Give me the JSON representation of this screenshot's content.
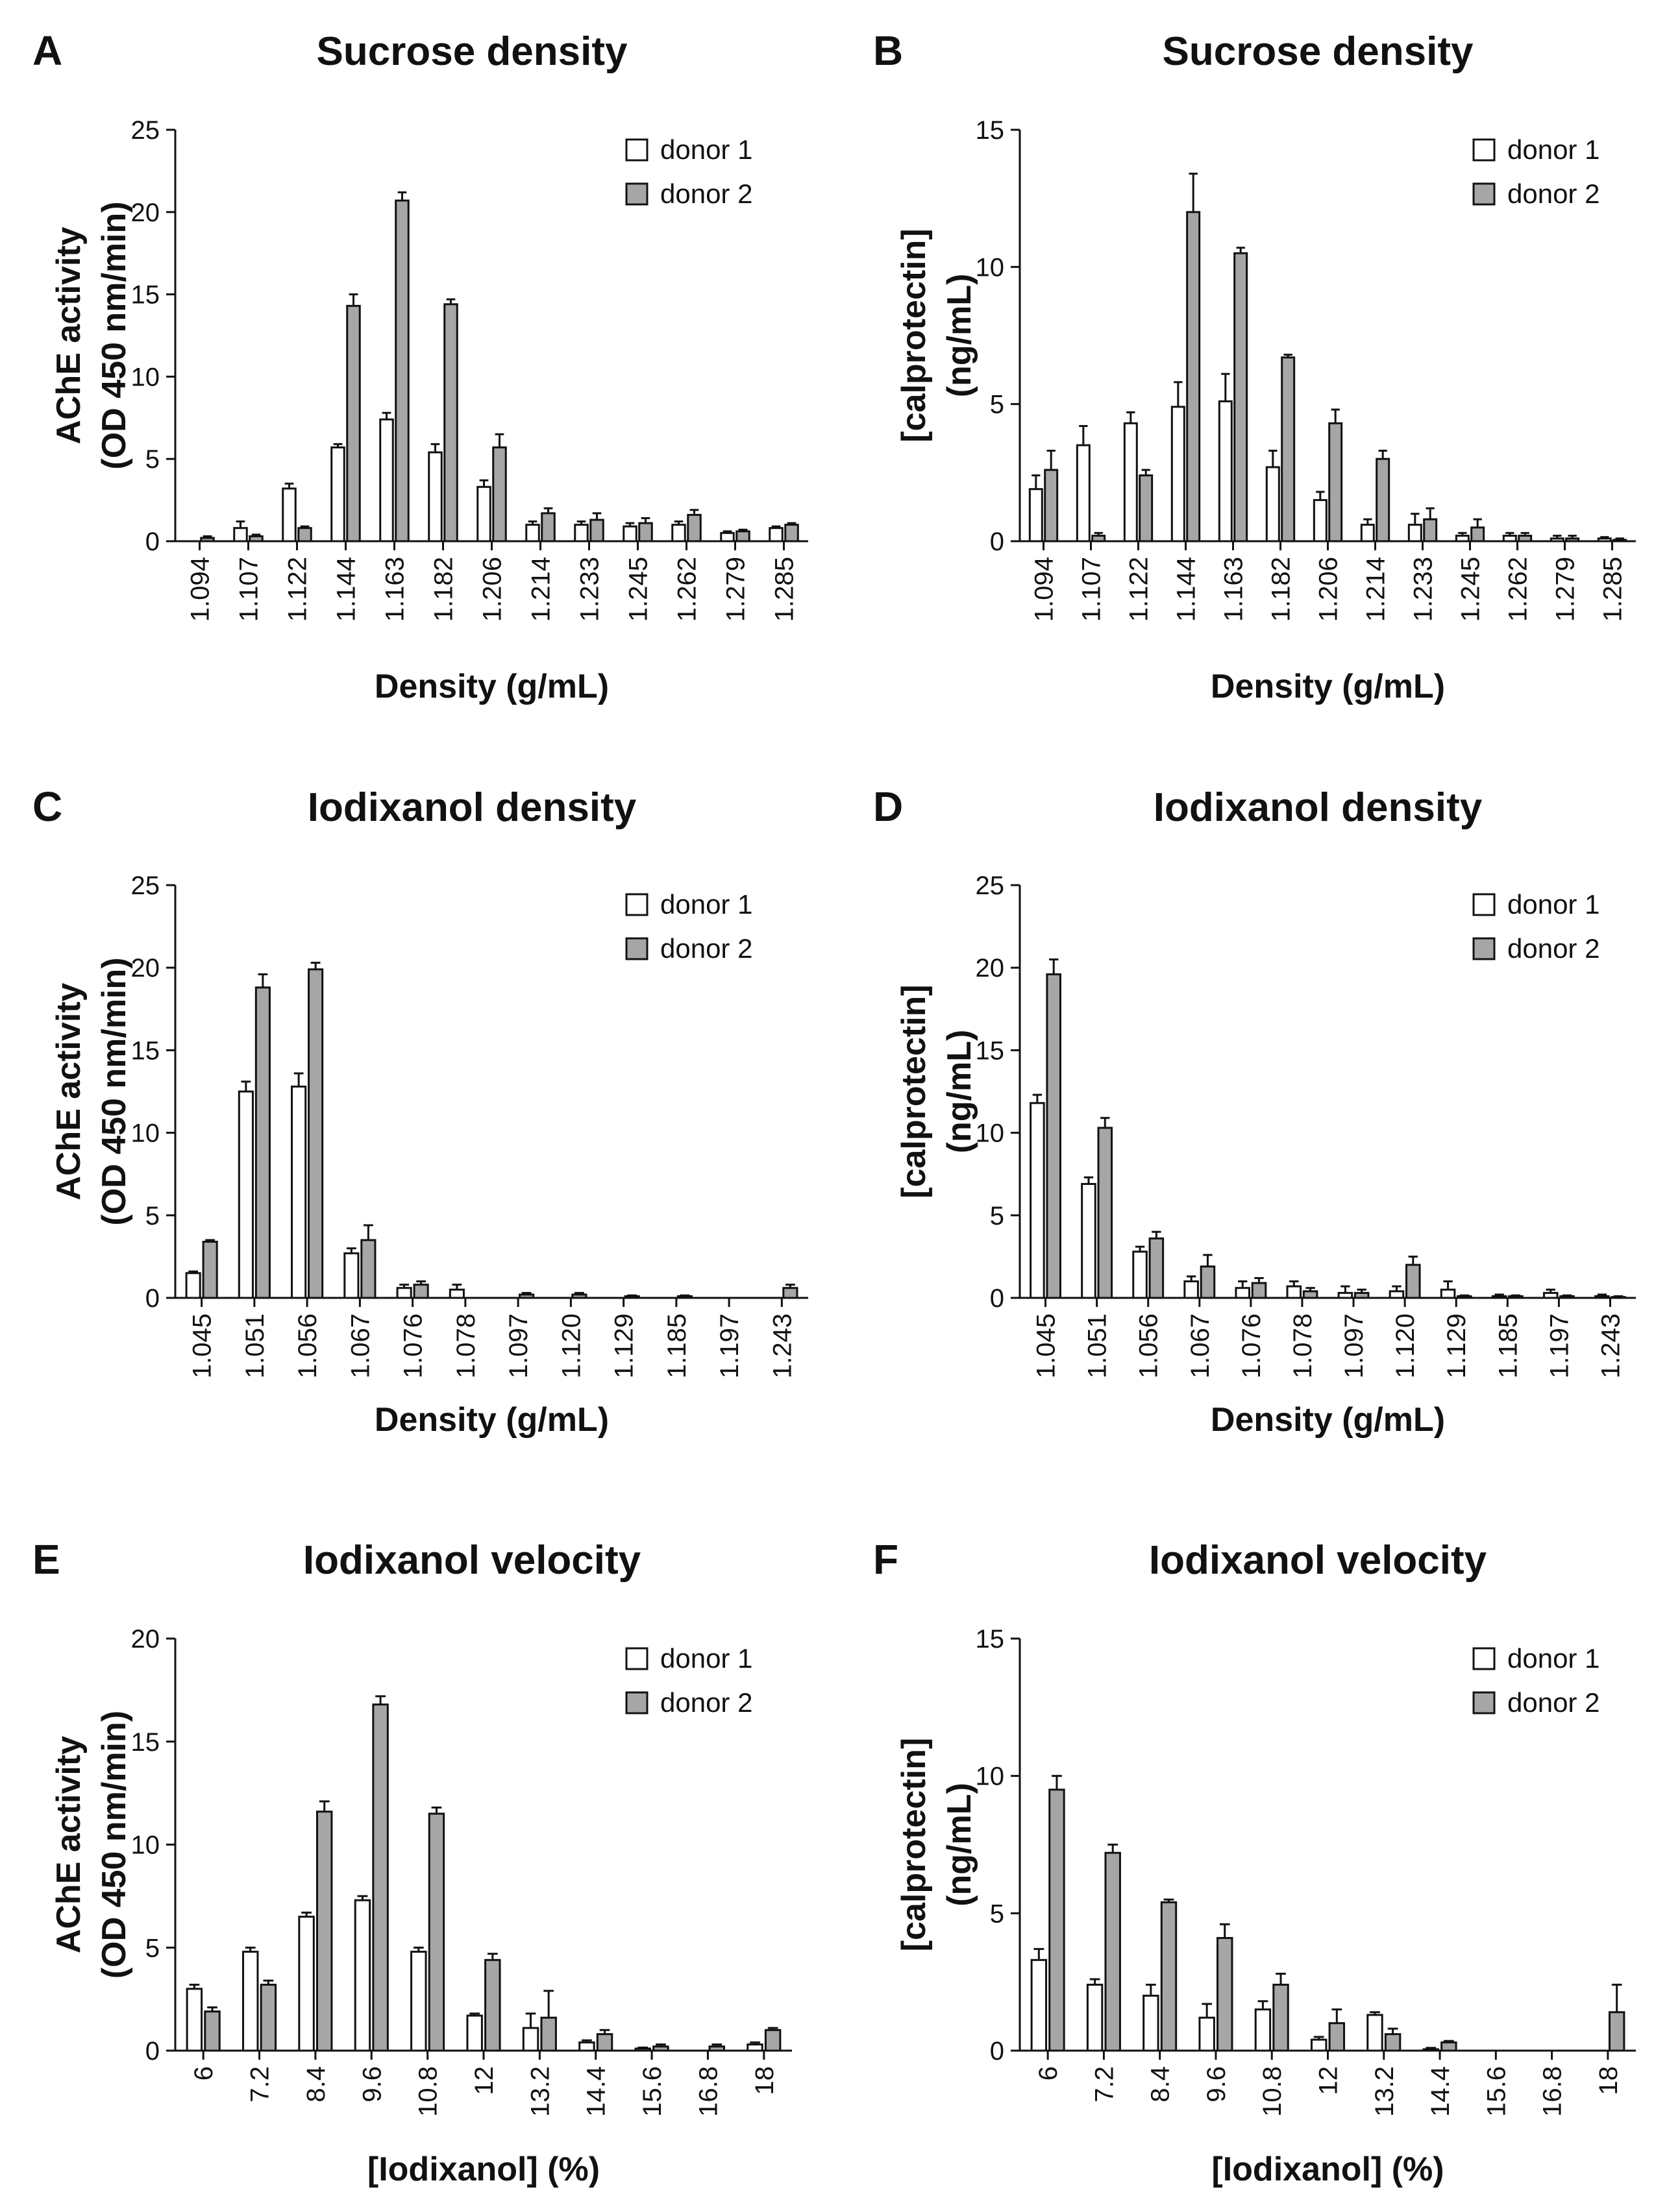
{
  "colors": {
    "donor1_fill": "#ffffff",
    "donor2_fill": "#a6a6a6",
    "stroke": "#111111"
  },
  "legend": {
    "series1": "donor 1",
    "series2": "donor 2"
  },
  "chart_data": [
    {
      "id": "A",
      "panel": "A",
      "type": "bar",
      "title": "Sucrose density",
      "ylabel_line1": "AChE activity",
      "ylabel_line2": "(OD 450 nm/min)",
      "xlabel": "Density (g/mL)",
      "ylim": [
        0,
        25
      ],
      "yticks": [
        0,
        5,
        10,
        15,
        20,
        25
      ],
      "categories": [
        "1.094",
        "1.107",
        "1.122",
        "1.144",
        "1.163",
        "1.182",
        "1.206",
        "1.214",
        "1.233",
        "1.245",
        "1.262",
        "1.279",
        "1.285"
      ],
      "series": [
        {
          "name": "donor 1",
          "values": [
            0,
            0.8,
            3.2,
            5.7,
            7.4,
            5.4,
            3.3,
            1.0,
            1.0,
            0.9,
            1.0,
            0.5,
            0.8
          ],
          "errors": [
            0,
            0.4,
            0.3,
            0.2,
            0.4,
            0.5,
            0.4,
            0.2,
            0.2,
            0.2,
            0.2,
            0.1,
            0.1
          ]
        },
        {
          "name": "donor 2",
          "values": [
            0.2,
            0.3,
            0.8,
            14.3,
            20.7,
            14.4,
            5.7,
            1.7,
            1.3,
            1.1,
            1.6,
            0.6,
            1.0
          ],
          "errors": [
            0.1,
            0.1,
            0.1,
            0.7,
            0.5,
            0.3,
            0.8,
            0.3,
            0.4,
            0.3,
            0.3,
            0.1,
            0.1
          ]
        }
      ]
    },
    {
      "id": "B",
      "panel": "B",
      "type": "bar",
      "title": "Sucrose density",
      "ylabel_line1": "[calprotectin]",
      "ylabel_line2": "(ng/mL)",
      "xlabel": "Density (g/mL)",
      "ylim": [
        0,
        15
      ],
      "yticks": [
        0,
        5,
        10,
        15
      ],
      "categories": [
        "1.094",
        "1.107",
        "1.122",
        "1.144",
        "1.163",
        "1.182",
        "1.206",
        "1.214",
        "1.233",
        "1.245",
        "1.262",
        "1.279",
        "1.285"
      ],
      "series": [
        {
          "name": "donor 1",
          "values": [
            1.9,
            3.5,
            4.3,
            4.9,
            5.1,
            2.7,
            1.5,
            0.6,
            0.6,
            0.2,
            0.2,
            0.1,
            0.1
          ],
          "errors": [
            0.5,
            0.7,
            0.4,
            0.9,
            1.0,
            0.6,
            0.3,
            0.2,
            0.4,
            0.1,
            0.1,
            0.1,
            0.05
          ]
        },
        {
          "name": "donor 2",
          "values": [
            2.6,
            0.2,
            2.4,
            12.0,
            10.5,
            6.7,
            4.3,
            3.0,
            0.8,
            0.5,
            0.2,
            0.1,
            0.05
          ],
          "errors": [
            0.7,
            0.1,
            0.2,
            1.4,
            0.2,
            0.1,
            0.5,
            0.3,
            0.4,
            0.3,
            0.1,
            0.1,
            0.05
          ]
        }
      ]
    },
    {
      "id": "C",
      "panel": "C",
      "type": "bar",
      "title": "Iodixanol density",
      "ylabel_line1": "AChE activity",
      "ylabel_line2": "(OD 450 nm/min)",
      "xlabel": "Density (g/mL)",
      "ylim": [
        0,
        25
      ],
      "yticks": [
        0,
        5,
        10,
        15,
        20,
        25
      ],
      "categories": [
        "1.045",
        "1.051",
        "1.056",
        "1.067",
        "1.076",
        "1.078",
        "1.097",
        "1.120",
        "1.129",
        "1.185",
        "1.197",
        "1.243"
      ],
      "series": [
        {
          "name": "donor 1",
          "values": [
            1.5,
            12.5,
            12.8,
            2.7,
            0.6,
            0.5,
            0,
            0,
            0,
            0,
            0,
            0
          ],
          "errors": [
            0.1,
            0.6,
            0.8,
            0.3,
            0.2,
            0.3,
            0,
            0,
            0,
            0,
            0,
            0
          ]
        },
        {
          "name": "donor 2",
          "values": [
            3.4,
            18.8,
            19.9,
            3.5,
            0.8,
            0,
            0.2,
            0.2,
            0.1,
            0.1,
            0,
            0.6
          ],
          "errors": [
            0.1,
            0.8,
            0.4,
            0.9,
            0.2,
            0,
            0.1,
            0.1,
            0.05,
            0.05,
            0,
            0.2
          ]
        }
      ]
    },
    {
      "id": "D",
      "panel": "D",
      "type": "bar",
      "title": "Iodixanol density",
      "ylabel_line1": "[calprotectin]",
      "ylabel_line2": "(ng/mL)",
      "xlabel": "Density (g/mL)",
      "ylim": [
        0,
        25
      ],
      "yticks": [
        0,
        5,
        10,
        15,
        20,
        25
      ],
      "categories": [
        "1.045",
        "1.051",
        "1.056",
        "1.067",
        "1.076",
        "1.078",
        "1.097",
        "1.120",
        "1.129",
        "1.185",
        "1.197",
        "1.243"
      ],
      "series": [
        {
          "name": "donor 1",
          "values": [
            11.8,
            6.9,
            2.8,
            1.0,
            0.6,
            0.7,
            0.3,
            0.4,
            0.5,
            0.1,
            0.3,
            0.1
          ],
          "errors": [
            0.5,
            0.4,
            0.3,
            0.3,
            0.4,
            0.3,
            0.4,
            0.3,
            0.5,
            0.1,
            0.2,
            0.1
          ]
        },
        {
          "name": "donor 2",
          "values": [
            19.6,
            10.3,
            3.6,
            1.9,
            0.9,
            0.4,
            0.3,
            2.0,
            0.1,
            0.1,
            0.1,
            0.05
          ],
          "errors": [
            0.9,
            0.6,
            0.4,
            0.7,
            0.3,
            0.2,
            0.2,
            0.5,
            0.05,
            0.05,
            0.05,
            0.05
          ]
        }
      ]
    },
    {
      "id": "E",
      "panel": "E",
      "type": "bar",
      "title": "Iodixanol velocity",
      "ylabel_line1": "AChE activity",
      "ylabel_line2": "(OD 450 nm/min)",
      "xlabel": "[Iodixanol] (%)",
      "ylim": [
        0,
        20
      ],
      "yticks": [
        0,
        5,
        10,
        15,
        20
      ],
      "categories": [
        "6",
        "7.2",
        "8.4",
        "9.6",
        "10.8",
        "12",
        "13.2",
        "14.4",
        "15.6",
        "16.8",
        "18"
      ],
      "series": [
        {
          "name": "donor 1",
          "values": [
            3.0,
            4.8,
            6.5,
            7.3,
            4.8,
            1.7,
            1.1,
            0.4,
            0.1,
            0,
            0.3
          ],
          "errors": [
            0.2,
            0.2,
            0.2,
            0.2,
            0.2,
            0.1,
            0.7,
            0.1,
            0.05,
            0,
            0.1
          ]
        },
        {
          "name": "donor 2",
          "values": [
            1.9,
            3.2,
            11.6,
            16.8,
            11.5,
            4.4,
            1.6,
            0.8,
            0.2,
            0.2,
            1.0
          ],
          "errors": [
            0.2,
            0.2,
            0.5,
            0.4,
            0.3,
            0.3,
            1.3,
            0.2,
            0.1,
            0.1,
            0.1
          ]
        }
      ]
    },
    {
      "id": "F",
      "panel": "F",
      "type": "bar",
      "title": "Iodixanol velocity",
      "ylabel_line1": "[calprotectin]",
      "ylabel_line2": "(ng/mL)",
      "xlabel": "[Iodixanol] (%)",
      "ylim": [
        0,
        15
      ],
      "yticks": [
        0,
        5,
        10,
        15
      ],
      "categories": [
        "6",
        "7.2",
        "8.4",
        "9.6",
        "10.8",
        "12",
        "13.2",
        "14.4",
        "15.6",
        "16.8",
        "18"
      ],
      "series": [
        {
          "name": "donor 1",
          "values": [
            3.3,
            2.4,
            2.0,
            1.2,
            1.5,
            0.4,
            1.3,
            0.05,
            0,
            0,
            0
          ],
          "errors": [
            0.4,
            0.2,
            0.4,
            0.5,
            0.3,
            0.1,
            0.1,
            0.05,
            0,
            0,
            0
          ]
        },
        {
          "name": "donor 2",
          "values": [
            9.5,
            7.2,
            5.4,
            4.1,
            2.4,
            1.0,
            0.6,
            0.3,
            0,
            0,
            1.4
          ],
          "errors": [
            0.5,
            0.3,
            0.1,
            0.5,
            0.4,
            0.5,
            0.2,
            0.05,
            0,
            0,
            1.0
          ]
        }
      ]
    }
  ]
}
